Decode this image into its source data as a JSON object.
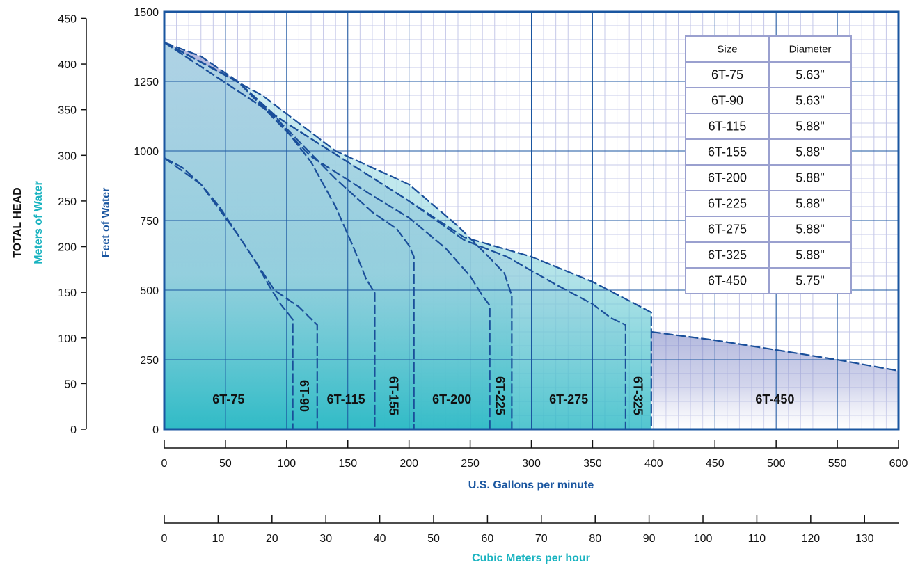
{
  "chart_data": {
    "type": "area",
    "x_axis": {
      "label": "U.S. Gallons per minute",
      "range": [
        0,
        600
      ],
      "ticks": [
        0,
        50,
        100,
        150,
        200,
        250,
        300,
        350,
        400,
        450,
        500,
        550,
        600
      ]
    },
    "x2_axis": {
      "label": "Cubic Meters per hour",
      "range": [
        0,
        136.3
      ],
      "ticks": [
        0,
        10,
        20,
        30,
        40,
        50,
        60,
        70,
        80,
        90,
        100,
        110,
        120,
        130
      ]
    },
    "y_axis": {
      "label": "Feet of Water",
      "range": [
        0,
        1500
      ],
      "ticks": [
        0,
        250,
        500,
        750,
        1000,
        1250,
        1500
      ]
    },
    "y2_axis": {
      "label": "Meters of Water",
      "range": [
        0,
        457.2
      ],
      "ticks": [
        0,
        50,
        100,
        150,
        200,
        250,
        300,
        350,
        400,
        450
      ]
    },
    "y_group_label": "TOTAL HEAD",
    "grid": true,
    "series": [
      {
        "name": "6T-75",
        "color": "#7b83c4",
        "x": [
          0,
          15,
          30,
          45,
          60,
          75,
          85,
          95,
          105
        ],
        "y": [
          975,
          940,
          880,
          800,
          700,
          600,
          520,
          450,
          395
        ]
      },
      {
        "name": "6T-90",
        "color": "#bfe5ee",
        "x": [
          0,
          30,
          60,
          90,
          110,
          118,
          125
        ],
        "y": [
          975,
          880,
          700,
          500,
          440,
          405,
          375
        ]
      },
      {
        "name": "6T-115",
        "color": "#7b83c4",
        "x": [
          0,
          30,
          60,
          90,
          120,
          140,
          155,
          165,
          172
        ],
        "y": [
          1390,
          1340,
          1250,
          1130,
          960,
          800,
          650,
          540,
          490
        ]
      },
      {
        "name": "6T-155",
        "color": "#bfe5ee",
        "x": [
          0,
          60,
          100,
          140,
          170,
          190,
          200,
          204
        ],
        "y": [
          1390,
          1250,
          1080,
          900,
          780,
          720,
          660,
          620
        ]
      },
      {
        "name": "6T-200",
        "color": "#7b83c4",
        "x": [
          0,
          60,
          120,
          170,
          200,
          230,
          250,
          260,
          266
        ],
        "y": [
          1390,
          1250,
          980,
          840,
          760,
          650,
          550,
          480,
          445
        ]
      },
      {
        "name": "6T-225",
        "color": "#bfe5ee",
        "x": [
          0,
          80,
          140,
          200,
          240,
          265,
          278,
          284
        ],
        "y": [
          1390,
          1200,
          1000,
          880,
          730,
          620,
          560,
          480
        ]
      },
      {
        "name": "6T-275",
        "color": "#7b83c4",
        "x": [
          0,
          100,
          200,
          245,
          280,
          320,
          350,
          365,
          377
        ],
        "y": [
          1390,
          1100,
          820,
          680,
          620,
          520,
          450,
          400,
          375
        ]
      },
      {
        "name": "6T-325",
        "color": "#bfe5ee",
        "x": [
          0,
          100,
          200,
          245,
          300,
          350,
          385,
          398
        ],
        "y": [
          1390,
          1100,
          820,
          690,
          620,
          530,
          450,
          420
        ]
      },
      {
        "name": "6T-450",
        "color": "#7b83c4",
        "x": [
          398,
          450,
          500,
          550,
          600
        ],
        "y": [
          350,
          320,
          285,
          250,
          210
        ]
      }
    ],
    "table": {
      "headers": [
        "Size",
        "Diameter"
      ],
      "rows": [
        [
          "6T-75",
          "5.63\""
        ],
        [
          "6T-90",
          "5.63\""
        ],
        [
          "6T-115",
          "5.88\""
        ],
        [
          "6T-155",
          "5.88\""
        ],
        [
          "6T-200",
          "5.88\""
        ],
        [
          "6T-225",
          "5.88\""
        ],
        [
          "6T-275",
          "5.88\""
        ],
        [
          "6T-325",
          "5.88\""
        ],
        [
          "6T-450",
          "5.75\""
        ]
      ]
    },
    "colors": {
      "frame": "#1a56a0",
      "grid_minor": "#c5c8e8",
      "grid_major": "#1a56a0",
      "dark_fill": "#7b83c4",
      "light_fill": "#bfe5ee",
      "teal": "#19b3c0"
    }
  }
}
